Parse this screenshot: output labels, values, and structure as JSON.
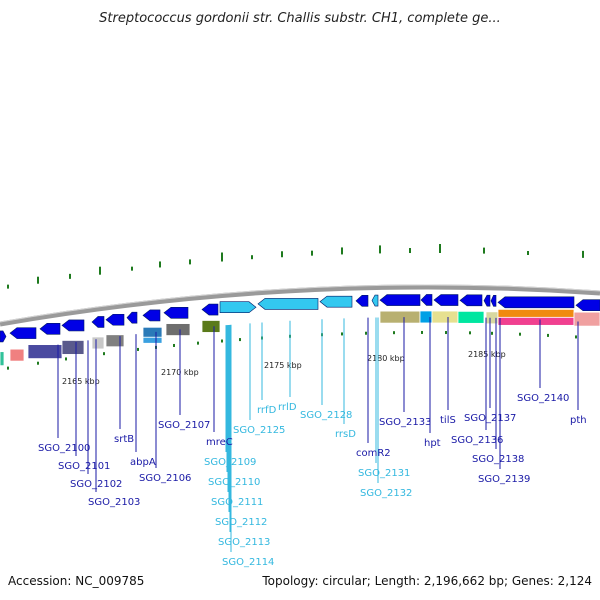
{
  "title": "Streptococcus gordonii str. Challis substr. CH1, complete ge...",
  "footer": {
    "accession": "Accession: NC_009785",
    "summary": "Topology: circular; Length: 2,196,662 bp; Genes: 2,124"
  },
  "colors": {
    "gene_dark": "#0000e6",
    "gene_light": "#33c8f0",
    "label_dark": "#1a1aa6",
    "label_light": "#34b8df",
    "gc_tick": "#1e7a1e",
    "backbone": "#9a9a9a"
  },
  "scale_labels": [
    "2165 kbp",
    "2170 kbp",
    "2175 kbp",
    "2180 kbp",
    "2185 kbp"
  ],
  "gene_labels": [
    {
      "text": "SGO_2100",
      "tone": "dark"
    },
    {
      "text": "SGO_2101",
      "tone": "dark"
    },
    {
      "text": "SGO_2102",
      "tone": "dark"
    },
    {
      "text": "SGO_2103",
      "tone": "dark"
    },
    {
      "text": "srtB",
      "tone": "dark"
    },
    {
      "text": "abpA",
      "tone": "dark"
    },
    {
      "text": "SGO_2106",
      "tone": "dark"
    },
    {
      "text": "SGO_2107",
      "tone": "dark"
    },
    {
      "text": "mreC",
      "tone": "dark"
    },
    {
      "text": "SGO_2109",
      "tone": "light"
    },
    {
      "text": "SGO_2110",
      "tone": "light"
    },
    {
      "text": "SGO_2111",
      "tone": "light"
    },
    {
      "text": "SGO_2112",
      "tone": "light"
    },
    {
      "text": "SGO_2113",
      "tone": "light"
    },
    {
      "text": "SGO_2114",
      "tone": "light"
    },
    {
      "text": "SGO_2125",
      "tone": "light"
    },
    {
      "text": "rrfD",
      "tone": "light"
    },
    {
      "text": "rrlD",
      "tone": "light"
    },
    {
      "text": "SGO_2128",
      "tone": "light"
    },
    {
      "text": "rrsD",
      "tone": "light"
    },
    {
      "text": "comR2",
      "tone": "dark"
    },
    {
      "text": "SGO_2131",
      "tone": "light"
    },
    {
      "text": "SGO_2132",
      "tone": "light"
    },
    {
      "text": "SGO_2133",
      "tone": "dark"
    },
    {
      "text": "hpt",
      "tone": "dark"
    },
    {
      "text": "tilS",
      "tone": "dark"
    },
    {
      "text": "SGO_2136",
      "tone": "dark"
    },
    {
      "text": "SGO_2137",
      "tone": "dark"
    },
    {
      "text": "SGO_2138",
      "tone": "dark"
    },
    {
      "text": "SGO_2139",
      "tone": "dark"
    },
    {
      "text": "SGO_2140",
      "tone": "dark"
    },
    {
      "text": "pth",
      "tone": "dark"
    }
  ]
}
